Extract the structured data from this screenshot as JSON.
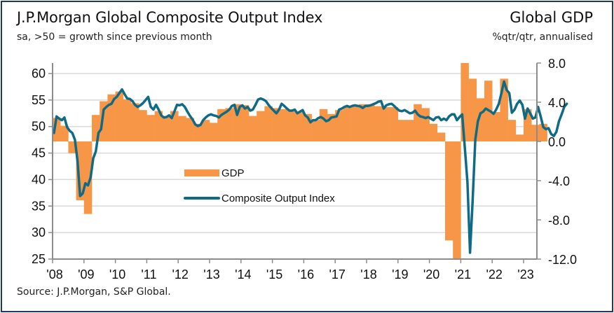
{
  "header": {
    "title": "J.P.Morgan Global Composite Output Index",
    "subtitle": "sa, >50 = growth since previous month",
    "right_title": "Global GDP",
    "right_subtitle": "%qtr/qtr, annualised"
  },
  "footer": {
    "source": "Source: J.P.Morgan, S&P Global."
  },
  "colors": {
    "gdp": "#f79646",
    "composite": "#0f6a85",
    "grid": "#d9d9d9",
    "axis": "#8c8c8c",
    "frame": "#1f3864"
  },
  "chart_data": {
    "type": "bar+line",
    "title": "J.P.Morgan Global Composite Output Index / Global GDP",
    "left_axis": {
      "label": "sa, >50 = growth since previous month",
      "ylim": [
        25,
        60
      ],
      "ticks": [
        "60",
        "55",
        "50",
        "45",
        "40",
        "35",
        "30",
        "25"
      ]
    },
    "right_axis": {
      "label": "%qtr/qtr, annualised",
      "ylim": [
        -12,
        8
      ],
      "ticks": [
        "8.0",
        "4.0",
        "0.0",
        "-4.0",
        "-8.0",
        "-12.0"
      ]
    },
    "x_ticks": [
      "'08",
      "'09",
      "'10",
      "'11",
      "'12",
      "'13",
      "'14",
      "'15",
      "'16",
      "'17",
      "'18",
      "'19",
      "'20",
      "'21",
      "'22",
      "'23"
    ],
    "x_range": [
      "2008-01",
      "2023-05"
    ],
    "grid": true,
    "legend": {
      "position": "center-left",
      "entries": [
        "GDP",
        "Composite Output Index"
      ]
    },
    "series": [
      {
        "name": "GDP",
        "type": "bar",
        "axis": "right",
        "frequency": "quarterly",
        "start": "2008-Q1",
        "values": [
          2.4,
          1.6,
          -1.2,
          -6.0,
          -7.4,
          2.7,
          4.1,
          4.8,
          5.1,
          4.3,
          3.9,
          3.2,
          2.7,
          3.1,
          2.6,
          3.1,
          2.6,
          2.4,
          1.8,
          2.2,
          1.9,
          3.3,
          3.4,
          3.8,
          3.7,
          2.6,
          3.1,
          3.6,
          3.4,
          3.3,
          3.1,
          3.0,
          2.8,
          2.2,
          3.3,
          2.8,
          3.2,
          3.5,
          3.6,
          3.8,
          3.8,
          3.6,
          3.5,
          3.5,
          2.2,
          2.2,
          3.8,
          3.4,
          1.8,
          0.9,
          -10.1,
          -12.0,
          8.0,
          6.4,
          4.4,
          6.2,
          3.0,
          6.4,
          2.2,
          0.7,
          3.3,
          1.7,
          1.8
        ]
      },
      {
        "name": "Composite Output Index",
        "type": "line",
        "axis": "left",
        "frequency": "monthly",
        "start": "2008-01",
        "values": [
          48.8,
          51.9,
          51.5,
          51.2,
          51.7,
          49.9,
          49.2,
          48.8,
          47.5,
          43.5,
          36.9,
          37.4,
          39.3,
          38.9,
          40.4,
          44.0,
          45.3,
          48.8,
          49.5,
          53.2,
          53.7,
          54.1,
          54.3,
          55.2,
          55.6,
          56.3,
          57.0,
          56.1,
          55.3,
          55.2,
          54.8,
          54.1,
          53.7,
          54.0,
          54.4,
          55.0,
          55.6,
          53.7,
          53.2,
          54.1,
          53.2,
          52.1,
          51.7,
          51.8,
          52.1,
          51.6,
          52.8,
          54.1,
          54.0,
          54.2,
          53.7,
          52.8,
          52.0,
          51.3,
          50.4,
          50.1,
          50.3,
          51.2,
          51.7,
          52.1,
          52.3,
          52.1,
          52.0,
          51.7,
          52.2,
          52.5,
          52.8,
          53.2,
          53.9,
          54.1,
          52.2,
          53.7,
          54.0,
          53.4,
          53.7,
          53.0,
          53.2,
          54.1,
          55.1,
          55.3,
          55.1,
          54.8,
          54.1,
          53.5,
          53.0,
          52.5,
          53.2,
          54.3,
          53.9,
          53.4,
          53.0,
          53.0,
          53.2,
          52.5,
          52.8,
          53.1,
          52.1,
          51.7,
          50.8,
          51.2,
          51.2,
          51.6,
          51.8,
          51.5,
          51.0,
          51.2,
          51.7,
          51.8,
          51.9,
          53.2,
          53.4,
          53.7,
          53.9,
          53.7,
          53.9,
          54.0,
          53.9,
          53.8,
          53.5,
          53.9,
          53.9,
          54.0,
          54.2,
          54.4,
          54.7,
          54.8,
          53.4,
          54.0,
          54.2,
          54.3,
          53.9,
          53.4,
          53.0,
          52.9,
          53.1,
          52.8,
          52.5,
          52.6,
          53.0,
          52.3,
          51.9,
          51.8,
          51.6,
          51.8,
          51.5,
          51.2,
          51.7,
          51.8,
          51.2,
          51.5,
          51.2,
          51.9,
          52.3,
          52.3,
          51.2,
          51.8,
          52.3,
          46.1,
          39.5,
          26.2,
          36.0,
          47.5,
          51.0,
          52.5,
          52.8,
          53.4,
          53.1,
          52.8,
          52.4,
          53.2,
          54.3,
          56.3,
          58.5,
          56.9,
          56.3,
          52.6,
          53.2,
          54.3,
          54.9,
          54.1,
          51.5,
          53.4,
          52.5,
          51.5,
          51.7,
          53.7,
          51.9,
          49.9,
          49.5,
          49.7,
          48.6,
          48.2,
          49.0,
          51.0,
          52.3,
          53.7,
          54.3
        ]
      }
    ]
  }
}
